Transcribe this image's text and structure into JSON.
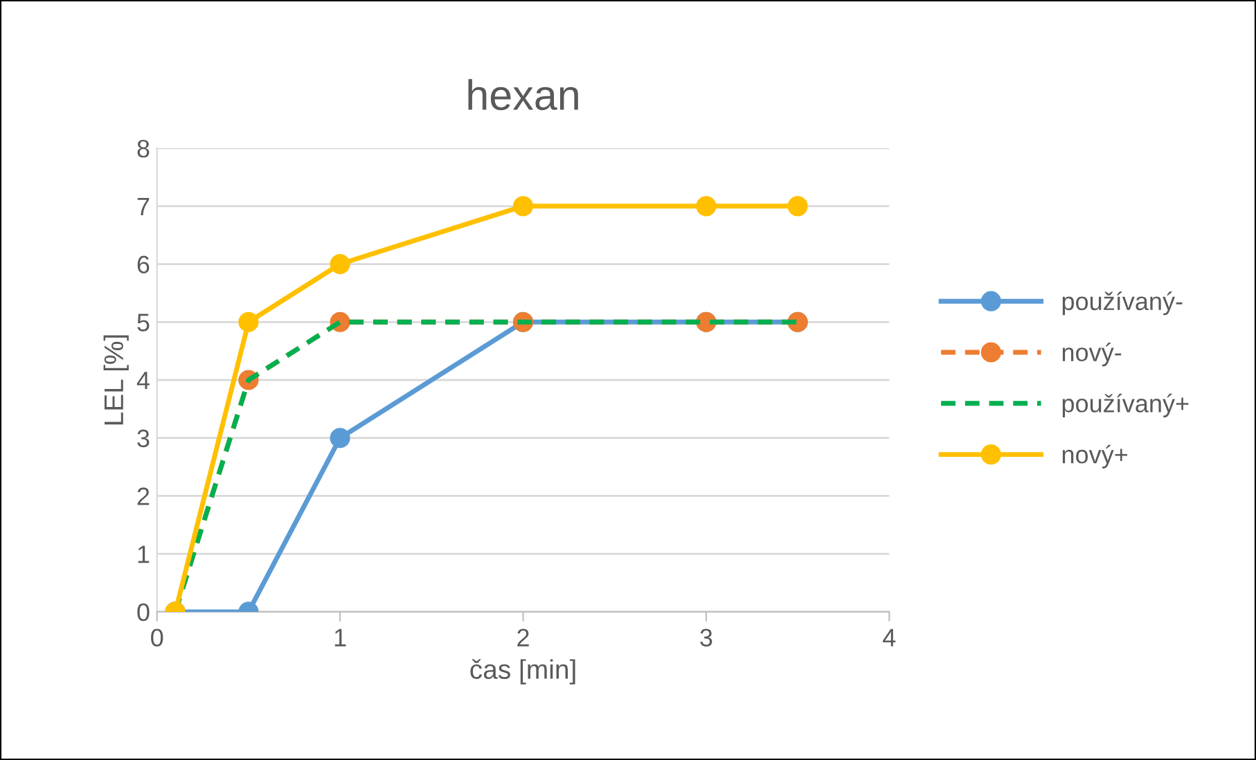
{
  "chart_data": {
    "type": "line",
    "title": "hexan",
    "xlabel": "čas [min]",
    "ylabel": "LEL [%]",
    "x": [
      0.1,
      0.5,
      1,
      2,
      3,
      3.5
    ],
    "series": [
      {
        "name": "používaný-",
        "color": "#5b9bd5",
        "values": [
          0,
          0,
          3,
          5,
          5,
          5
        ],
        "marker": "circle",
        "line_style": "solid"
      },
      {
        "name": "nový-",
        "color": "#ed7d31",
        "values": [
          0,
          4,
          5,
          5,
          5,
          5
        ],
        "marker": "circle",
        "line_style": "dashed"
      },
      {
        "name": "používaný+",
        "color": "#00b050",
        "values": [
          0,
          4,
          5,
          5,
          5,
          5
        ],
        "marker": "none",
        "line_style": "dashed"
      },
      {
        "name": "nový+",
        "color": "#ffc000",
        "values": [
          0,
          5,
          6,
          7,
          7,
          7
        ],
        "marker": "circle",
        "line_style": "solid"
      }
    ],
    "xlim": [
      0,
      4
    ],
    "xticks": [
      0,
      1,
      2,
      3,
      4
    ],
    "ylim": [
      0,
      8
    ],
    "yticks": [
      0,
      1,
      2,
      3,
      4,
      5,
      6,
      7,
      8
    ],
    "grid": "y",
    "legend": "right"
  }
}
